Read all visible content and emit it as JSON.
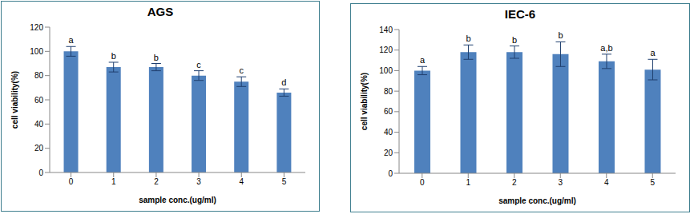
{
  "chart_data": [
    {
      "type": "bar",
      "title": "AGS",
      "x_label": "sample conc.(ug/ml)",
      "y_label": "cell viability(%)",
      "categories": [
        "0",
        "1",
        "2",
        "3",
        "4",
        "5"
      ],
      "values": [
        100,
        87,
        87,
        80,
        75,
        66
      ],
      "errors": [
        4,
        4,
        3,
        4,
        4,
        3
      ],
      "annotations": [
        "a",
        "b",
        "b",
        "c",
        "c",
        "d"
      ],
      "color": "#4f81bd",
      "ylim": [
        0,
        120
      ],
      "yticks": [
        0,
        20,
        40,
        60,
        80,
        100,
        120
      ],
      "grid": false
    },
    {
      "type": "bar",
      "title": "IEC-6",
      "x_label": "sample conc.(ug/ml)",
      "y_label": "cell viability(%)",
      "categories": [
        "0",
        "1",
        "2",
        "3",
        "4",
        "5"
      ],
      "values": [
        100,
        118,
        118,
        116,
        109,
        101
      ],
      "errors": [
        4,
        7,
        6,
        12,
        7,
        10
      ],
      "annotations": [
        "a",
        "b",
        "b",
        "b",
        "a,b",
        "a"
      ],
      "color": "#4f81bd",
      "ylim": [
        0,
        140
      ],
      "yticks": [
        0,
        20,
        40,
        60,
        80,
        100,
        120,
        140
      ],
      "grid": false
    }
  ]
}
